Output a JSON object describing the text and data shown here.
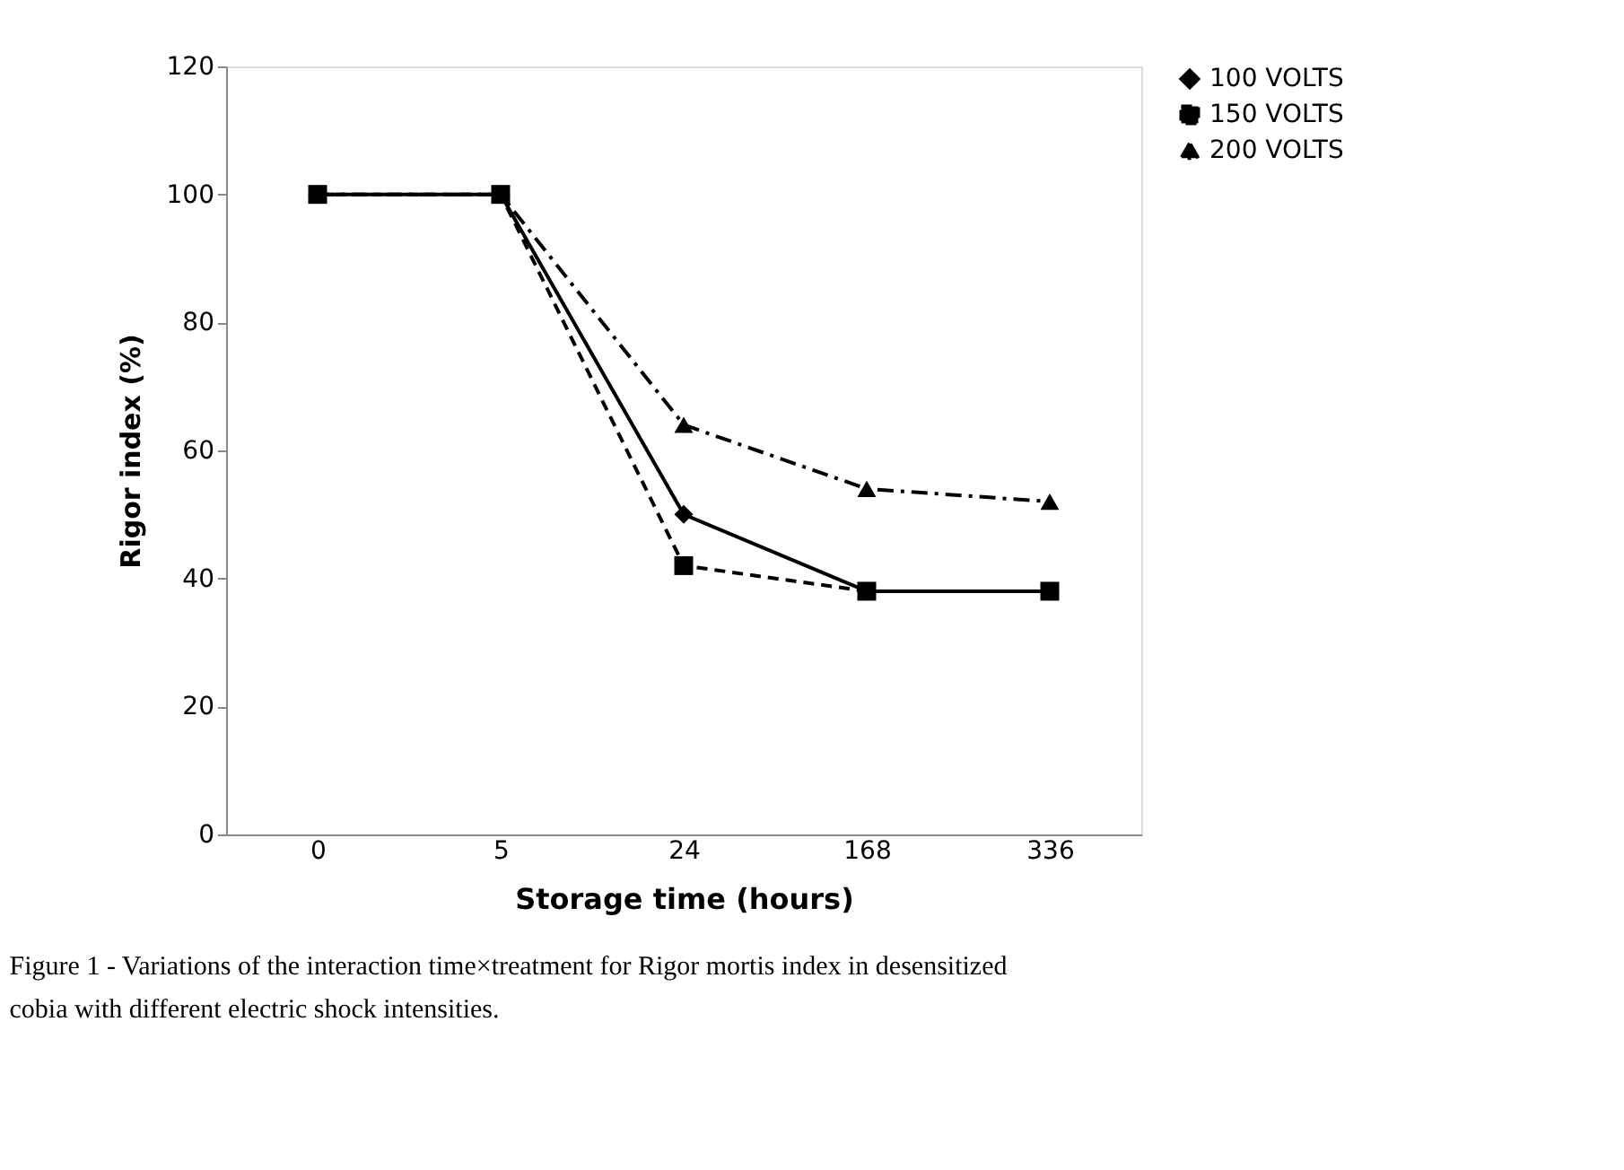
{
  "chart_data": {
    "type": "line",
    "xlabel": "Storage time (hours)",
    "ylabel": "Rigor index (%)",
    "categories": [
      "0",
      "5",
      "24",
      "168",
      "336"
    ],
    "series": [
      {
        "name": "100 VOLTS",
        "color": "#000000",
        "marker": "diamond",
        "line_style": "solid",
        "values": [
          100,
          100,
          50,
          38,
          38
        ]
      },
      {
        "name": "150 VOLTS",
        "color": "#000000",
        "marker": "square",
        "line_style": "dashed",
        "values": [
          100,
          100,
          42,
          38,
          38
        ]
      },
      {
        "name": "200 VOLTS",
        "color": "#000000",
        "marker": "triangle",
        "line_style": "dashdot",
        "values": [
          100,
          100,
          64,
          54,
          52
        ]
      }
    ],
    "ylim": [
      0,
      120
    ],
    "yticks": [
      0,
      20,
      40,
      60,
      80,
      100,
      120
    ],
    "grid": false,
    "legend": "right",
    "annotations": [
      "Figure 1 - Variations of the interaction time×treatment for Rigor mortis index in desensitized cobia with different electric shock intensities."
    ]
  }
}
